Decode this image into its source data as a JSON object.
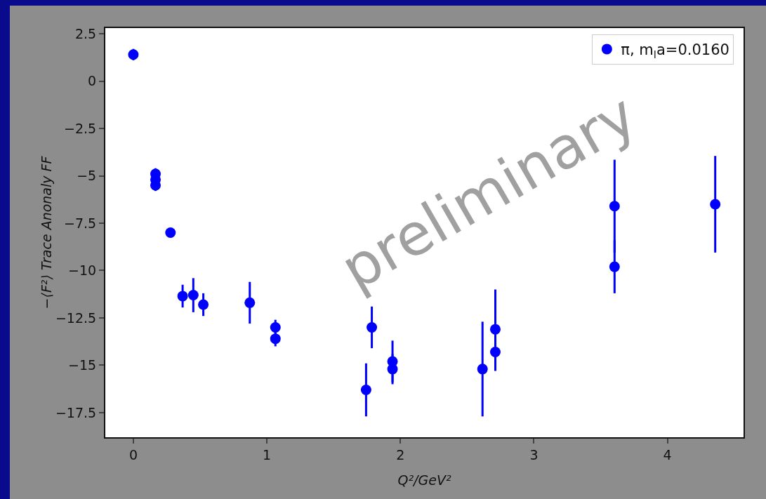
{
  "chart_data": {
    "type": "scatter",
    "xlabel": "Q²/GeV²",
    "ylabel": "−⟨F²⟩ Trace Anonaly FF",
    "annotations": [
      "preliminary"
    ],
    "x": [
      0,
      0.166,
      0.166,
      0.166,
      0.278,
      0.369,
      0.449,
      0.524,
      0.872,
      1.064,
      1.064,
      1.743,
      1.786,
      1.941,
      1.941,
      2.615,
      2.711,
      2.711,
      3.604,
      3.604,
      4.358
    ],
    "series": [
      {
        "name": "π, m$_{l}$a=0.0160",
        "color": "#0000ff",
        "values": [
          1.4,
          -4.9,
          -5.2,
          -5.5,
          -8.0,
          -11.35,
          -11.3,
          -11.8,
          -11.7,
          -13.0,
          -13.6,
          -16.3,
          -13.0,
          -14.8,
          -15.2,
          -15.2,
          -13.1,
          -14.3,
          -6.6,
          -9.8,
          -6.5
        ],
        "errors": [
          0.3,
          0.3,
          0.3,
          0.3,
          0.2,
          0.6,
          0.9,
          0.6,
          1.1,
          0.4,
          0.4,
          1.4,
          1.1,
          1.1,
          0.8,
          2.5,
          2.1,
          1.0,
          2.45,
          1.4,
          2.55
        ]
      }
    ],
    "xlim": [
      -0.21,
      4.57
    ],
    "xticks": [
      0,
      1,
      2,
      3,
      4
    ],
    "ylim": [
      -18.8,
      2.8
    ],
    "yticks": [
      2.5,
      0,
      -2.5,
      -5,
      -7.5,
      -10,
      -12.5,
      -15,
      -17.5
    ],
    "grid": false,
    "legend": "top right",
    "marker": "circle"
  }
}
